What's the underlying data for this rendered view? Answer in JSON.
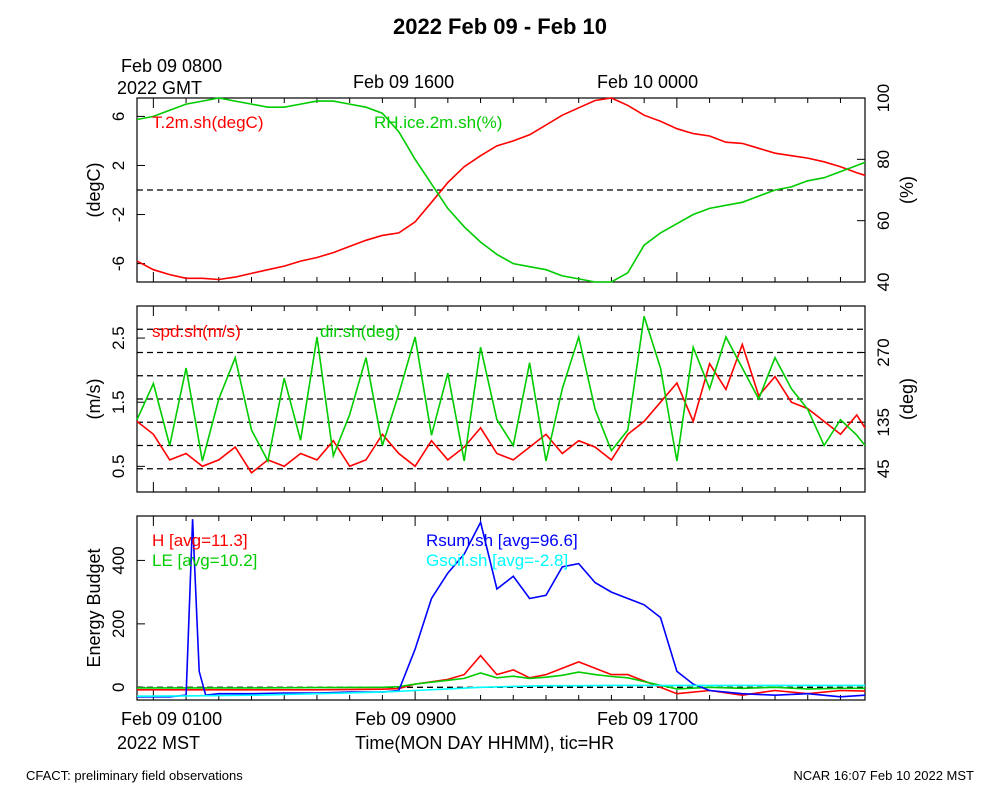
{
  "title": "2022 Feb 09 - Feb 10",
  "top_axis": {
    "labels": [
      "Feb 09 0800",
      "Feb 09 1600",
      "Feb 10 0000"
    ],
    "first_sublabel": "2022 GMT"
  },
  "bottom_axis": {
    "labels": [
      "Feb 09 0100",
      "Feb 09 0900",
      "Feb 09 1700"
    ],
    "first_sublabel": "2022 MST",
    "xlabel": "Time(MON DAY HHMM), tic=HR"
  },
  "footer": {
    "left": "CFACT: preliminary field observations",
    "right": "NCAR 16:07 Feb 10 2022 MST"
  },
  "colors": {
    "red": "#ff0000",
    "green": "#00cc00",
    "blue": "#0000ff",
    "cyan": "#00ffff"
  },
  "chart_data": [
    {
      "type": "line",
      "x_unit": "hours since Feb 09 0000 MST",
      "xlim": [
        0.5,
        22.75
      ],
      "ylabel_left": "(degC)",
      "ylabel_right": "(%)",
      "ylim_left": [
        -7.5,
        7.5
      ],
      "ylim_right": [
        40,
        100
      ],
      "yticks_left": [
        -6,
        -2,
        2,
        6
      ],
      "yticks_left_labels": [
        "-6",
        "-2",
        "2",
        "6"
      ],
      "yticks_right": [
        40,
        60,
        80,
        100
      ],
      "yticks_right_labels": [
        "40",
        "60",
        "80",
        "100"
      ],
      "ref_lines_left": [
        0
      ],
      "series": [
        {
          "name": "T.2m.sh(degC)",
          "color": "#ff0000",
          "axis": "left",
          "x": [
            0.5,
            1,
            1.5,
            2,
            2.5,
            3,
            3.5,
            4,
            4.5,
            5,
            5.5,
            6,
            6.5,
            7,
            7.5,
            8,
            8.5,
            9,
            9.5,
            10,
            10.5,
            11,
            11.5,
            12,
            12.5,
            13,
            13.5,
            14,
            14.5,
            15,
            15.5,
            16,
            16.5,
            17,
            17.5,
            18,
            18.5,
            19,
            19.5,
            20,
            20.5,
            21,
            21.5,
            22,
            22.5,
            22.75
          ],
          "y": [
            -5.8,
            -6.5,
            -6.9,
            -7.2,
            -7.2,
            -7.3,
            -7.1,
            -6.8,
            -6.5,
            -6.2,
            -5.8,
            -5.5,
            -5.1,
            -4.6,
            -4.1,
            -3.7,
            -3.5,
            -2.6,
            -1.0,
            0.6,
            1.9,
            2.8,
            3.6,
            4.0,
            4.5,
            5.3,
            6.1,
            6.7,
            7.3,
            7.5,
            6.9,
            6.1,
            5.6,
            5.0,
            4.6,
            4.4,
            3.9,
            3.8,
            3.4,
            3.0,
            2.8,
            2.6,
            2.3,
            1.9,
            1.4,
            1.2
          ]
        },
        {
          "name": "RH.ice.2m.sh(%)",
          "color": "#00cc00",
          "axis": "right",
          "x": [
            0.5,
            1,
            1.5,
            2,
            2.5,
            3,
            3.5,
            4,
            4.5,
            5,
            5.5,
            6,
            6.5,
            7,
            7.5,
            8,
            8.5,
            9,
            9.5,
            10,
            10.5,
            11,
            11.5,
            12,
            12.5,
            13,
            13.5,
            14,
            14.5,
            15,
            15.5,
            16,
            16.5,
            17,
            17.5,
            18,
            18.5,
            19,
            19.5,
            20,
            20.5,
            21,
            21.5,
            22,
            22.5,
            22.75
          ],
          "y": [
            93,
            94,
            96,
            98,
            99,
            100,
            99,
            98,
            97,
            97,
            98,
            99,
            99,
            98,
            97,
            95,
            89,
            80,
            72,
            64,
            58,
            53,
            49,
            46,
            45,
            44,
            42,
            41,
            40,
            40,
            43,
            52,
            56,
            59,
            62,
            64,
            65,
            66,
            68,
            70,
            71,
            73,
            74,
            76,
            78,
            79
          ]
        }
      ]
    },
    {
      "type": "line",
      "x_unit": "hours since Feb 09 0000 MST",
      "xlim": [
        0.5,
        22.75
      ],
      "ylabel_left": "(m/s)",
      "ylabel_right": "(deg)",
      "ylim_left": [
        0.1,
        3.0
      ],
      "ylim_right": [
        0,
        360
      ],
      "yticks_left": [
        0.5,
        1.5,
        2.5
      ],
      "yticks_left_labels": [
        "0.5",
        "1.5",
        "2.5"
      ],
      "yticks_right": [
        45,
        135,
        270
      ],
      "yticks_right_labels": [
        "45",
        "135",
        "270"
      ],
      "ref_lines_right": [
        45,
        90,
        135,
        180,
        225,
        270,
        315
      ],
      "series": [
        {
          "name": "spd.sh(m/s)",
          "color": "#ff0000",
          "axis": "left",
          "x": [
            0.5,
            1,
            1.5,
            2,
            2.5,
            3,
            3.5,
            4,
            4.5,
            5,
            5.5,
            6,
            6.5,
            7,
            7.5,
            8,
            8.5,
            9,
            9.5,
            10,
            10.5,
            11,
            11.5,
            12,
            12.5,
            13,
            13.5,
            14,
            14.5,
            15,
            15.5,
            16,
            16.5,
            17,
            17.5,
            18,
            18.5,
            19,
            19.5,
            20,
            20.5,
            21,
            21.5,
            22,
            22.5,
            22.75
          ],
          "y": [
            1.2,
            1.0,
            0.6,
            0.7,
            0.5,
            0.6,
            0.8,
            0.4,
            0.6,
            0.5,
            0.7,
            0.6,
            0.9,
            0.5,
            0.6,
            1.0,
            0.7,
            0.5,
            0.9,
            0.6,
            0.8,
            1.1,
            0.7,
            0.6,
            0.8,
            1.0,
            0.7,
            0.9,
            0.8,
            0.6,
            1.0,
            1.2,
            1.5,
            1.8,
            1.2,
            2.1,
            1.7,
            2.4,
            1.6,
            1.9,
            1.5,
            1.4,
            1.2,
            1.0,
            1.3,
            1.1
          ]
        },
        {
          "name": "dir.sh(deg)",
          "color": "#00cc00",
          "axis": "right",
          "x": [
            0.5,
            1,
            1.5,
            2,
            2.5,
            3,
            3.5,
            4,
            4.5,
            5,
            5.5,
            6,
            6.5,
            7,
            7.5,
            8,
            8.5,
            9,
            9.5,
            10,
            10.5,
            11,
            11.5,
            12,
            12.5,
            13,
            13.5,
            14,
            14.5,
            15,
            15.5,
            16,
            16.5,
            17,
            17.5,
            18,
            18.5,
            19,
            19.5,
            20,
            20.5,
            21,
            21.5,
            22,
            22.5,
            22.75
          ],
          "y": [
            140,
            210,
            90,
            240,
            60,
            180,
            260,
            120,
            60,
            220,
            100,
            300,
            70,
            150,
            260,
            90,
            190,
            300,
            110,
            230,
            60,
            280,
            140,
            90,
            250,
            60,
            200,
            300,
            160,
            80,
            120,
            340,
            240,
            60,
            280,
            200,
            300,
            240,
            180,
            260,
            200,
            160,
            90,
            140,
            110,
            90
          ]
        }
      ]
    },
    {
      "type": "line",
      "x_unit": "hours since Feb 09 0000 MST",
      "xlim": [
        0.5,
        22.75
      ],
      "ylabel_left": "Energy Budget",
      "ylim_left": [
        -40,
        540
      ],
      "yticks_left": [
        0,
        200,
        400
      ],
      "yticks_left_labels": [
        "0",
        "200",
        "400"
      ],
      "ref_lines_left": [
        0
      ],
      "series": [
        {
          "name": "H",
          "label": "H [avg=11.3]",
          "color": "#ff0000",
          "x": [
            0.5,
            2,
            4,
            6,
            8,
            8.5,
            9,
            10,
            10.5,
            11,
            11.5,
            12,
            12.5,
            13,
            13.5,
            14,
            14.5,
            15,
            15.5,
            16,
            17,
            18,
            19,
            20,
            21,
            22,
            22.75
          ],
          "y": [
            -8,
            -8,
            -8,
            -8,
            -6,
            -4,
            10,
            25,
            40,
            100,
            40,
            55,
            30,
            40,
            60,
            80,
            60,
            40,
            40,
            20,
            -20,
            -10,
            -25,
            -10,
            -20,
            -10,
            -12
          ]
        },
        {
          "name": "LE",
          "label": "LE [avg=10.2]",
          "color": "#00cc00",
          "x": [
            0.5,
            2,
            4,
            6,
            8,
            8.5,
            9,
            10,
            10.5,
            11,
            11.5,
            12,
            12.5,
            13,
            13.5,
            14,
            14.5,
            15,
            15.5,
            16,
            17,
            18,
            19,
            20,
            21,
            22,
            22.75
          ],
          "y": [
            -2,
            -2,
            -2,
            -1,
            0,
            2,
            10,
            22,
            28,
            45,
            30,
            35,
            28,
            32,
            38,
            48,
            40,
            34,
            30,
            18,
            -5,
            0,
            -3,
            0,
            -5,
            -3,
            -3
          ]
        },
        {
          "name": "Rsum.sh",
          "label": "Rsum.sh [avg=96.6]",
          "color": "#0000ff",
          "x": [
            0.5,
            1.5,
            2,
            2.2,
            2.4,
            2.6,
            3,
            4,
            5,
            6,
            7,
            8,
            8.5,
            9,
            9.5,
            10,
            10.5,
            11,
            11.5,
            12,
            12.5,
            13,
            13.5,
            14,
            14.5,
            15,
            15.5,
            16,
            16.5,
            17,
            17.5,
            18,
            19,
            20,
            21,
            22,
            22.75
          ],
          "y": [
            -30,
            -30,
            -25,
            530,
            50,
            -25,
            -20,
            -20,
            -18,
            -18,
            -15,
            -15,
            -10,
            120,
            280,
            360,
            420,
            520,
            310,
            350,
            280,
            290,
            380,
            390,
            330,
            300,
            280,
            260,
            220,
            50,
            10,
            -10,
            -20,
            -25,
            -20,
            -30,
            -25
          ]
        },
        {
          "name": "Gsoil.sh",
          "label": "Gsoil.sh [avg=-2.8]",
          "color": "#00ffff",
          "x": [
            0.5,
            2,
            4,
            6,
            8,
            9,
            10,
            11,
            12,
            13,
            14,
            15,
            16,
            17,
            18,
            19,
            20,
            21,
            22,
            22.75
          ],
          "y": [
            -28,
            -27,
            -25,
            -20,
            -15,
            -10,
            -5,
            0,
            3,
            5,
            5,
            6,
            6,
            6,
            6,
            6,
            6,
            6,
            6,
            6
          ]
        }
      ]
    }
  ]
}
